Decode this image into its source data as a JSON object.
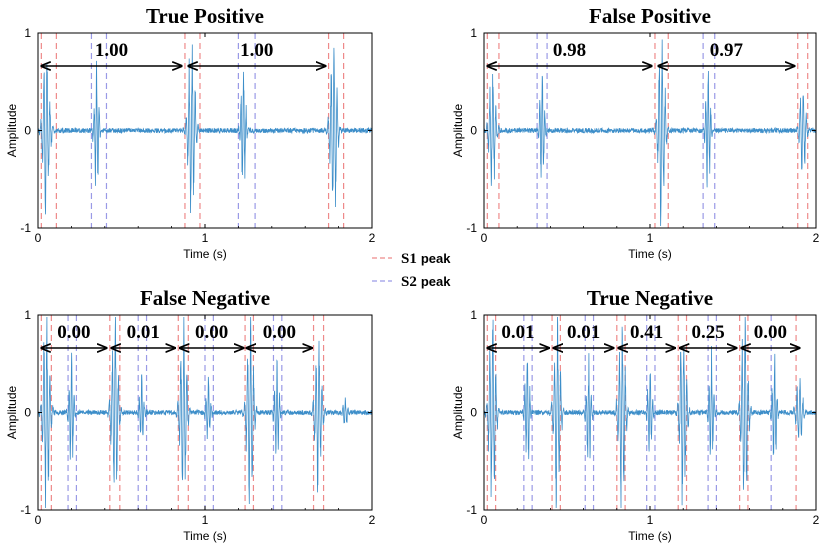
{
  "colors": {
    "signal": "#3d8ec9",
    "s1": "#ee8a8a",
    "s2": "#9a9ae6",
    "axis": "#000000"
  },
  "legend": {
    "s1_label": "S1",
    "s1_suffix": "peak",
    "s2_label": "S2",
    "s2_suffix": "peak"
  },
  "chart_data": [
    {
      "type": "line",
      "title": "True Positive",
      "xlabel": "Time (s)",
      "ylabel": "Amplitude",
      "xlim": [
        0,
        2
      ],
      "ylim": [
        -1,
        1
      ],
      "xticks": [
        "0",
        "1",
        "2"
      ],
      "yticks": [
        "-1",
        "0",
        "1"
      ],
      "s1_lines": [
        0.02,
        0.11,
        0.88,
        0.97,
        1.74,
        1.83
      ],
      "s2_lines": [
        0.32,
        0.41,
        1.2,
        1.3
      ],
      "beats": [
        {
          "s1": 0.05,
          "s2": 0.35,
          "a1": 0.78,
          "a2": 0.58
        },
        {
          "s1": 0.92,
          "s2": 1.23,
          "a1": 0.8,
          "a2": 0.62
        },
        {
          "s1": 1.77,
          "s2": null,
          "a1": 0.8,
          "a2": 0
        }
      ],
      "intervals": [
        {
          "start": 0.02,
          "end": 0.86,
          "label": "1.00"
        },
        {
          "start": 0.9,
          "end": 1.72,
          "label": "1.00"
        }
      ]
    },
    {
      "type": "line",
      "title": "False Positive",
      "xlabel": "Time (s)",
      "ylabel": "Amplitude",
      "xlim": [
        0,
        2
      ],
      "ylim": [
        -1,
        1
      ],
      "xticks": [
        "0",
        "1",
        "2"
      ],
      "yticks": [
        "-1",
        "0",
        "1"
      ],
      "s1_lines": [
        0.02,
        0.09,
        1.03,
        1.11,
        1.89,
        1.95
      ],
      "s2_lines": [
        0.32,
        0.38,
        1.32,
        1.39
      ],
      "beats": [
        {
          "s1": 0.05,
          "s2": 0.35,
          "a1": 0.5,
          "a2": 0.55
        },
        {
          "s1": 1.07,
          "s2": 1.35,
          "a1": 0.85,
          "a2": 0.6
        },
        {
          "s1": 1.92,
          "s2": null,
          "a1": 0.4,
          "a2": 0
        }
      ],
      "intervals": [
        {
          "start": 0.02,
          "end": 1.01,
          "label": "0.98"
        },
        {
          "start": 1.05,
          "end": 1.87,
          "label": "0.97"
        }
      ]
    },
    {
      "type": "line",
      "title": "False Negative",
      "xlabel": "Time (s)",
      "ylabel": "Amplitude",
      "xlim": [
        0,
        2
      ],
      "ylim": [
        -1,
        1
      ],
      "xticks": [
        "0",
        "1",
        "2"
      ],
      "yticks": [
        "-1",
        "0",
        "1"
      ],
      "s1_lines": [
        0.02,
        0.08,
        0.43,
        0.49,
        0.84,
        0.9,
        1.24,
        1.29,
        1.65,
        1.71
      ],
      "s2_lines": [
        0.18,
        0.23,
        0.6,
        0.65,
        1.0,
        1.05,
        1.41,
        1.46
      ],
      "beats": [
        {
          "s1": 0.05,
          "s2": 0.2,
          "a1": 0.85,
          "a2": 0.45
        },
        {
          "s1": 0.46,
          "s2": 0.62,
          "a1": 0.82,
          "a2": 0.3
        },
        {
          "s1": 0.87,
          "s2": 1.02,
          "a1": 0.8,
          "a2": 0.3
        },
        {
          "s1": 1.27,
          "s2": 1.43,
          "a1": 0.82,
          "a2": 0.42
        },
        {
          "s1": 1.68,
          "s2": 1.84,
          "a1": 0.7,
          "a2": 0.15
        }
      ],
      "intervals": [
        {
          "start": 0.02,
          "end": 0.41,
          "label": "0.00"
        },
        {
          "start": 0.44,
          "end": 0.82,
          "label": "0.01"
        },
        {
          "start": 0.85,
          "end": 1.23,
          "label": "0.00"
        },
        {
          "start": 1.25,
          "end": 1.64,
          "label": "0.00"
        }
      ]
    },
    {
      "type": "line",
      "title": "True Negative",
      "xlabel": "Time (s)",
      "ylabel": "Amplitude",
      "xlim": [
        0,
        2
      ],
      "ylim": [
        -1,
        1
      ],
      "xticks": [
        "0",
        "1",
        "2"
      ],
      "yticks": [
        "-1",
        "0",
        "1"
      ],
      "s1_lines": [
        0.02,
        0.07,
        0.41,
        0.46,
        0.8,
        0.85,
        1.17,
        1.22,
        1.54,
        1.59,
        1.88
      ],
      "s2_lines": [
        0.24,
        0.29,
        0.61,
        0.66,
        0.98,
        1.03,
        1.35,
        1.4,
        1.73
      ],
      "beats": [
        {
          "s1": 0.05,
          "s2": 0.26,
          "a1": 0.85,
          "a2": 0.55
        },
        {
          "s1": 0.44,
          "s2": 0.63,
          "a1": 0.82,
          "a2": 0.5
        },
        {
          "s1": 0.83,
          "s2": 1.0,
          "a1": 0.82,
          "a2": 0.45
        },
        {
          "s1": 1.2,
          "s2": 1.37,
          "a1": 0.8,
          "a2": 0.5
        },
        {
          "s1": 1.57,
          "s2": 1.75,
          "a1": 0.85,
          "a2": 0.5
        },
        {
          "s1": 1.9,
          "s2": null,
          "a1": 0.3,
          "a2": 0
        }
      ],
      "intervals": [
        {
          "start": 0.02,
          "end": 0.39,
          "label": "0.01"
        },
        {
          "start": 0.42,
          "end": 0.78,
          "label": "0.01"
        },
        {
          "start": 0.81,
          "end": 1.15,
          "label": "0.41"
        },
        {
          "start": 1.18,
          "end": 1.52,
          "label": "0.25"
        },
        {
          "start": 1.55,
          "end": 1.9,
          "label": "0.00"
        }
      ]
    }
  ]
}
